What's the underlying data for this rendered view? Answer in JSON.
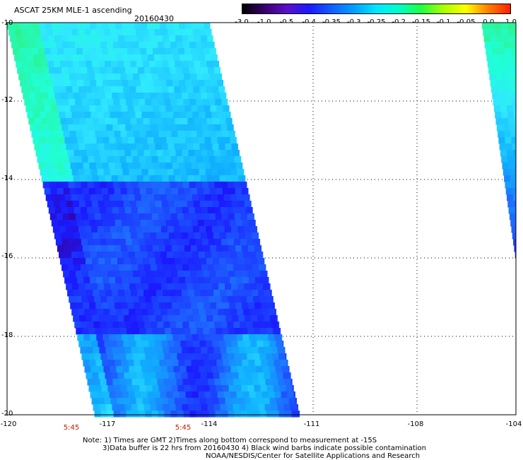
{
  "header": {
    "title": "ASCAT 25KM MLE-1 ascending",
    "date": "20160430"
  },
  "colorbar": {
    "labels": [
      "-3.0",
      "-1.0",
      "-0.5",
      "-0.4",
      "-0.35",
      "-0.3",
      "-0.25",
      "-0.2",
      "-0.15",
      "-0.1",
      "-0.05",
      "0.0",
      "1.0"
    ],
    "colors": [
      "#000000",
      "#3a0070",
      "#5a10c8",
      "#1a1aff",
      "#1060ff",
      "#00a0ff",
      "#00e8ff",
      "#00ffc8",
      "#20ff40",
      "#a8ff00",
      "#ffff00",
      "#ff8000",
      "#ff2000"
    ]
  },
  "axes": {
    "lat_labels": [
      "-10",
      "-12",
      "-14",
      "-16",
      "-18",
      "-20"
    ],
    "lon_labels": [
      "-120",
      "-117",
      "-114",
      "-111",
      "-108",
      "-104"
    ]
  },
  "swath_times": [
    "5:45",
    "5:45"
  ],
  "notes": [
    "Note: 1) Times are GMT 2)Times along bottom correspond to measurement at -15S",
    "3)Data buffer is 22 hrs from 20160430 4) Black wind barbs indicate possible contamination",
    "NOAA/NESDIS/Center for Satellite Applications and Research"
  ]
}
